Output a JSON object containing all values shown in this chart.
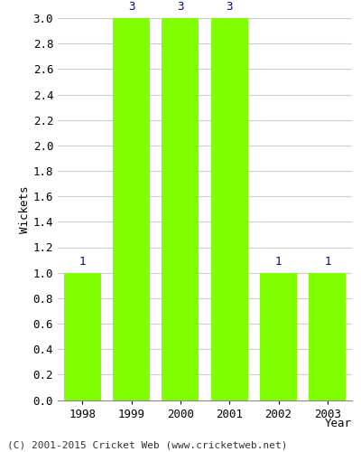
{
  "years": [
    "1998",
    "1999",
    "2000",
    "2001",
    "2002",
    "2003"
  ],
  "values": [
    1,
    3,
    3,
    3,
    1,
    1
  ],
  "bar_color": "#7fff00",
  "bar_edge_color": "#7fff00",
  "label_color": "#00008b",
  "ylabel": "Wickets",
  "xlabel": "Year",
  "ylim": [
    0.0,
    3.0
  ],
  "yticks": [
    0.0,
    0.2,
    0.4,
    0.6,
    0.8,
    1.0,
    1.2,
    1.4,
    1.6,
    1.8,
    2.0,
    2.2,
    2.4,
    2.6,
    2.8,
    3.0
  ],
  "background_color": "#ffffff",
  "footer_text": "(C) 2001-2015 Cricket Web (www.cricketweb.net)",
  "bar_width": 0.75,
  "grid_color": "#cccccc",
  "label_fontsize": 9,
  "axis_fontsize": 9,
  "footer_fontsize": 8
}
